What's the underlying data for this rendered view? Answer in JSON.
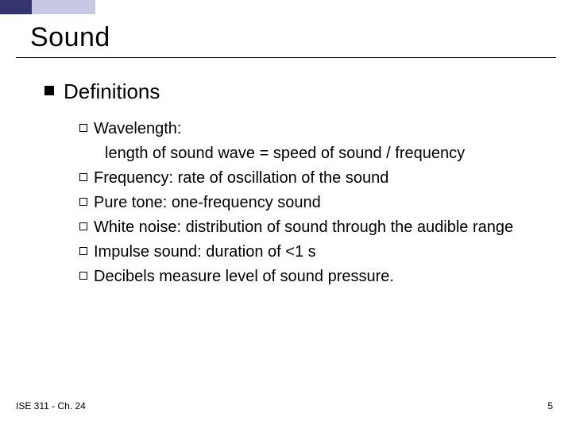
{
  "accent": {
    "dark": "#34346f",
    "light": "#c8c8e4"
  },
  "title": "Sound",
  "heading": "Definitions",
  "bullet_fill": "#000000",
  "items": [
    {
      "term": "Wavelength:",
      "body_indent": "length of sound wave = speed of sound / frequency"
    },
    {
      "term": "Frequency:",
      "rest": "  rate of oscillation of the sound"
    },
    {
      "term": "Pure tone:",
      "rest": "  one-frequency sound"
    },
    {
      "term": "White noise:",
      "rest": "  distribution of sound through the audible range"
    },
    {
      "term": "Impulse sound:",
      "rest": "  duration of <1 s"
    },
    {
      "term": "Decibels",
      "rest": " measure level of sound pressure."
    }
  ],
  "footer": {
    "left": "ISE 311 - Ch. 24",
    "page": "5"
  }
}
